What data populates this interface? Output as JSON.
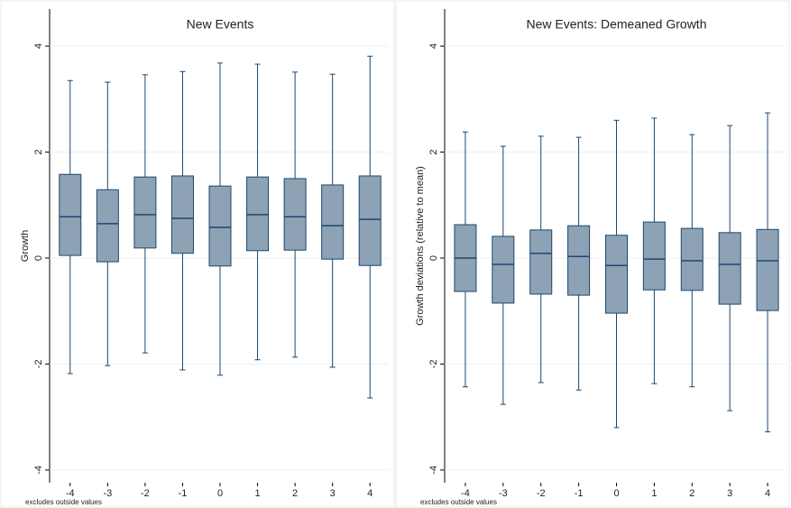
{
  "chart_data": [
    {
      "type": "box",
      "title": "New Events",
      "ylabel": "Growth",
      "note": "excludes outside values",
      "categories": [
        "-4",
        "-3",
        "-2",
        "-1",
        "0",
        "1",
        "2",
        "3",
        "4"
      ],
      "fill": "#8ea2b6",
      "stroke": "#1a476f",
      "boxes": [
        {
          "whisker_low": -2.18,
          "q1": 0.05,
          "median": 0.78,
          "q3": 1.58,
          "whisker_high": 3.35
        },
        {
          "whisker_low": -2.03,
          "q1": -0.07,
          "median": 0.65,
          "q3": 1.29,
          "whisker_high": 3.32
        },
        {
          "whisker_low": -1.79,
          "q1": 0.19,
          "median": 0.82,
          "q3": 1.53,
          "whisker_high": 3.46
        },
        {
          "whisker_low": -2.11,
          "q1": 0.09,
          "median": 0.75,
          "q3": 1.55,
          "whisker_high": 3.52
        },
        {
          "whisker_low": -2.21,
          "q1": -0.15,
          "median": 0.58,
          "q3": 1.36,
          "whisker_high": 3.68
        },
        {
          "whisker_low": -1.92,
          "q1": 0.14,
          "median": 0.82,
          "q3": 1.53,
          "whisker_high": 3.66
        },
        {
          "whisker_low": -1.87,
          "q1": 0.15,
          "median": 0.78,
          "q3": 1.5,
          "whisker_high": 3.51
        },
        {
          "whisker_low": -2.06,
          "q1": -0.02,
          "median": 0.61,
          "q3": 1.38,
          "whisker_high": 3.47
        },
        {
          "whisker_low": -2.64,
          "q1": -0.14,
          "median": 0.73,
          "q3": 1.55,
          "whisker_high": 3.81
        }
      ],
      "ylim": [
        -4.24,
        4.7
      ],
      "yticks": [
        -4,
        -2,
        0,
        2,
        4
      ],
      "grid": true
    },
    {
      "type": "box",
      "title": "New Events: Demeaned Growth",
      "ylabel": "Growth deviations (relative to mean)",
      "note": "excludes outside values",
      "categories": [
        "-4",
        "-3",
        "-2",
        "-1",
        "0",
        "1",
        "2",
        "3",
        "4"
      ],
      "fill": "#8ea2b6",
      "stroke": "#1a476f",
      "boxes": [
        {
          "whisker_low": -2.43,
          "q1": -0.63,
          "median": 0,
          "q3": 0.63,
          "whisker_high": 2.38
        },
        {
          "whisker_low": -2.76,
          "q1": -0.85,
          "median": -0.12,
          "q3": 0.41,
          "whisker_high": 2.11
        },
        {
          "whisker_low": -2.35,
          "q1": -0.68,
          "median": 0.09,
          "q3": 0.53,
          "whisker_high": 2.3
        },
        {
          "whisker_low": -2.49,
          "q1": -0.7,
          "median": 0.03,
          "q3": 0.61,
          "whisker_high": 2.28
        },
        {
          "whisker_low": -3.2,
          "q1": -1.04,
          "median": -0.14,
          "q3": 0.43,
          "whisker_high": 2.6
        },
        {
          "whisker_low": -2.37,
          "q1": -0.6,
          "median": -0.02,
          "q3": 0.68,
          "whisker_high": 2.64
        },
        {
          "whisker_low": -2.43,
          "q1": -0.61,
          "median": -0.05,
          "q3": 0.56,
          "whisker_high": 2.33
        },
        {
          "whisker_low": -2.88,
          "q1": -0.87,
          "median": -0.12,
          "q3": 0.48,
          "whisker_high": 2.5
        },
        {
          "whisker_low": -3.28,
          "q1": -0.99,
          "median": -0.05,
          "q3": 0.54,
          "whisker_high": 2.74
        }
      ],
      "ylim": [
        -4.24,
        4.7
      ],
      "yticks": [
        -4,
        -2,
        0,
        2,
        4
      ],
      "grid": true
    }
  ]
}
